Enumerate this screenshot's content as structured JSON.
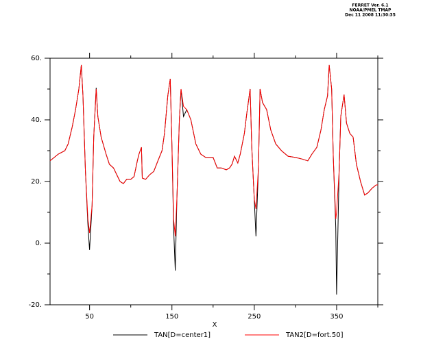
{
  "chart_data": {
    "type": "line",
    "header": [
      "FERRET Ver. 6.1",
      "NOAA/PMEL TMAP",
      "Dec 11 2008 11:30:35"
    ],
    "xlabel": "X",
    "xlim": [
      2,
      400
    ],
    "ylim": [
      -20,
      60
    ],
    "xticks": [
      50,
      150,
      250,
      350
    ],
    "xminorticks": [
      100,
      200,
      300,
      400
    ],
    "yticks": [
      {
        "value": -20,
        "label": "-20."
      },
      {
        "value": 0,
        "label": "0."
      },
      {
        "value": 20,
        "label": "20."
      },
      {
        "value": 40,
        "label": "40."
      },
      {
        "value": 60,
        "label": "60."
      }
    ],
    "yminorticks": [
      -10,
      10,
      30,
      50
    ],
    "x": [
      2,
      12,
      20,
      24,
      29,
      33,
      37,
      40,
      42,
      45,
      48,
      50,
      53,
      55,
      58,
      60,
      64,
      70,
      74,
      79,
      83,
      87,
      91,
      95,
      100,
      104,
      108,
      110,
      113,
      114,
      118,
      123,
      128,
      133,
      138,
      141,
      145,
      148,
      150,
      152,
      154,
      156,
      159,
      161,
      164,
      168,
      173,
      179,
      185,
      191,
      200,
      205,
      210,
      216,
      220,
      223,
      226,
      230,
      233,
      238,
      241,
      245,
      247,
      250,
      252,
      255,
      257,
      260,
      265,
      270,
      276,
      283,
      291,
      300,
      308,
      315,
      320,
      326,
      331,
      335,
      339,
      341,
      344,
      346,
      349,
      350,
      353,
      355,
      359,
      362,
      366,
      370,
      374,
      379,
      384,
      388,
      393,
      398,
      400
    ],
    "series": [
      {
        "name": "TAN[D=center1]",
        "color": "#000000",
        "values": [
          26.7,
          28.9,
          30.0,
          32.2,
          37.8,
          43.3,
          50.0,
          57.8,
          47.8,
          23.3,
          6.0,
          -2.2,
          12.2,
          34.4,
          50.4,
          41.1,
          34.4,
          28.9,
          25.6,
          24.4,
          22.2,
          20.0,
          19.3,
          20.7,
          20.7,
          21.6,
          26.7,
          28.9,
          31.1,
          21.1,
          20.7,
          22.2,
          23.3,
          26.7,
          30.0,
          35.6,
          47.8,
          53.3,
          32.2,
          5.0,
          -8.9,
          14.4,
          40.0,
          50.0,
          41.1,
          43.3,
          40.0,
          32.2,
          28.9,
          27.8,
          27.8,
          24.4,
          24.4,
          23.8,
          24.4,
          25.6,
          28.2,
          26.0,
          28.9,
          35.6,
          42.2,
          50.0,
          31.1,
          14.4,
          2.2,
          24.4,
          50.0,
          45.6,
          43.3,
          36.7,
          32.2,
          30.0,
          28.2,
          27.8,
          27.3,
          26.7,
          28.9,
          31.1,
          36.7,
          43.3,
          47.8,
          57.8,
          50.0,
          27.8,
          5.0,
          -16.7,
          23.3,
          41.1,
          48.2,
          38.9,
          35.6,
          34.4,
          25.6,
          20.0,
          15.6,
          16.3,
          17.8,
          18.9,
          18.9
        ]
      },
      {
        "name": "TAN2[D=fort.50]",
        "color": "#ff0000",
        "values": [
          26.7,
          28.9,
          30.0,
          32.2,
          37.8,
          43.3,
          50.0,
          57.8,
          47.8,
          23.3,
          7.8,
          3.3,
          12.2,
          34.4,
          50.0,
          41.1,
          34.4,
          28.9,
          25.6,
          24.4,
          22.2,
          20.0,
          19.3,
          20.7,
          20.7,
          21.6,
          26.7,
          28.9,
          31.1,
          21.1,
          20.7,
          22.2,
          23.3,
          26.7,
          30.0,
          35.6,
          47.8,
          53.3,
          32.2,
          7.8,
          2.2,
          14.4,
          40.0,
          50.0,
          44.4,
          43.3,
          40.0,
          32.2,
          28.9,
          27.8,
          27.8,
          24.4,
          24.4,
          23.8,
          24.4,
          25.6,
          28.2,
          26.0,
          28.9,
          35.6,
          42.2,
          50.0,
          31.1,
          14.4,
          11.1,
          24.4,
          50.0,
          45.6,
          43.3,
          36.7,
          32.2,
          30.0,
          28.2,
          27.8,
          27.3,
          26.7,
          28.9,
          31.1,
          36.7,
          43.3,
          47.8,
          57.8,
          50.0,
          27.8,
          7.8,
          10.0,
          23.3,
          41.1,
          48.2,
          38.9,
          35.6,
          34.4,
          25.6,
          20.0,
          15.6,
          16.3,
          17.8,
          18.9,
          18.9
        ]
      }
    ]
  }
}
